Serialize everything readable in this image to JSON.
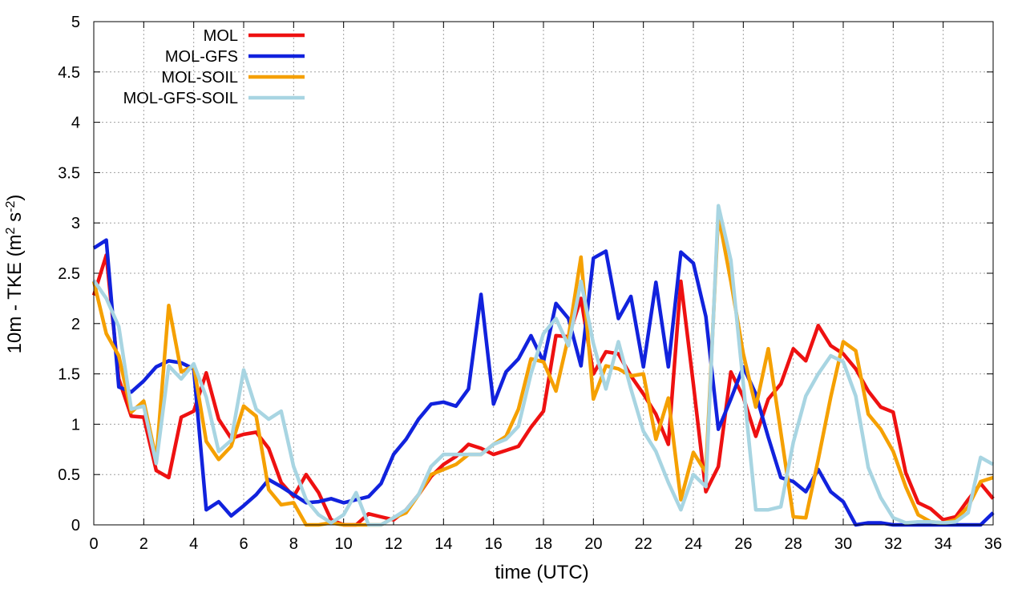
{
  "chart_data": {
    "type": "line",
    "title": "",
    "xlabel": "time (UTC)",
    "ylabel": {
      "base": "10m - TKE (m",
      "sup1": "2",
      "mid": " s",
      "sup2": "-2",
      "end": ")"
    },
    "xlim": [
      0,
      36
    ],
    "ylim": [
      0,
      5
    ],
    "xticks": [
      0,
      2,
      4,
      6,
      8,
      10,
      12,
      14,
      16,
      18,
      20,
      22,
      24,
      26,
      28,
      30,
      32,
      34,
      36
    ],
    "xtick_labels": [
      "0",
      "2",
      "4",
      "6",
      "8",
      "10",
      "12",
      "14",
      "16",
      "18",
      "20",
      "22",
      "24",
      "26",
      "28",
      "30",
      "32",
      "34",
      "36"
    ],
    "yticks": [
      0,
      0.5,
      1,
      1.5,
      2,
      2.5,
      3,
      3.5,
      4,
      4.5,
      5
    ],
    "ytick_labels": [
      "0",
      "0.5",
      "1",
      "1.5",
      "2",
      "2.5",
      "3",
      "3.5",
      "4",
      "4.5",
      "5"
    ],
    "grid": true,
    "legend_position": "top-left",
    "x": [
      0,
      0.5,
      1,
      1.5,
      2,
      2.5,
      3,
      3.5,
      4,
      4.5,
      5,
      5.5,
      6,
      6.5,
      7,
      7.5,
      8,
      8.5,
      9,
      9.5,
      10,
      10.5,
      11,
      11.5,
      12,
      12.5,
      13,
      13.5,
      14,
      14.5,
      15,
      15.5,
      16,
      16.5,
      17,
      17.5,
      18,
      18.5,
      19,
      19.5,
      20,
      20.5,
      21,
      21.5,
      22,
      22.5,
      23,
      23.5,
      24,
      24.5,
      25,
      25.5,
      26,
      26.5,
      27,
      27.5,
      28,
      28.5,
      29,
      29.5,
      30,
      30.5,
      31,
      31.5,
      32,
      32.5,
      33,
      33.5,
      34,
      34.5,
      35,
      35.5,
      36
    ],
    "series": [
      {
        "name": "MOL",
        "color": "#ee1111",
        "values": [
          2.28,
          2.68,
          1.45,
          1.08,
          1.07,
          0.54,
          0.47,
          1.07,
          1.13,
          1.51,
          1.05,
          0.86,
          0.9,
          0.92,
          0.76,
          0.42,
          0.28,
          0.5,
          0.32,
          0.05,
          0.0,
          0.0,
          0.11,
          0.08,
          0.05,
          0.15,
          0.3,
          0.48,
          0.6,
          0.68,
          0.8,
          0.76,
          0.7,
          0.74,
          0.78,
          0.97,
          1.13,
          1.88,
          1.87,
          2.25,
          1.5,
          1.72,
          1.7,
          1.48,
          1.3,
          1.1,
          0.8,
          2.42,
          1.4,
          0.33,
          0.58,
          1.52,
          1.27,
          0.88,
          1.25,
          1.4,
          1.75,
          1.63,
          1.98,
          1.78,
          1.7,
          1.55,
          1.33,
          1.17,
          1.12,
          0.52,
          0.22,
          0.16,
          0.05,
          0.08,
          0.25,
          0.41,
          0.26
        ]
      },
      {
        "name": "MOL-GFS",
        "color": "#1122dd",
        "values": [
          2.75,
          2.83,
          1.37,
          1.32,
          1.43,
          1.57,
          1.63,
          1.61,
          1.55,
          0.15,
          0.23,
          0.09,
          0.19,
          0.3,
          0.45,
          0.38,
          0.3,
          0.22,
          0.23,
          0.26,
          0.22,
          0.25,
          0.28,
          0.41,
          0.7,
          0.85,
          1.05,
          1.2,
          1.22,
          1.18,
          1.35,
          2.29,
          1.2,
          1.52,
          1.65,
          1.88,
          1.62,
          2.2,
          2.05,
          1.58,
          2.65,
          2.72,
          2.05,
          2.27,
          1.57,
          2.41,
          1.57,
          2.71,
          2.6,
          2.07,
          0.95,
          1.25,
          1.57,
          1.3,
          0.87,
          0.47,
          0.43,
          0.33,
          0.55,
          0.33,
          0.23,
          0.0,
          0.02,
          0.02,
          0.0,
          0.0,
          0.0,
          0.0,
          0.0,
          0.0,
          0.0,
          0.0,
          0.12
        ]
      },
      {
        "name": "MOL-SOIL",
        "color": "#f5a000",
        "values": [
          2.42,
          1.9,
          1.68,
          1.12,
          1.23,
          0.65,
          2.18,
          1.52,
          1.58,
          0.83,
          0.65,
          0.78,
          1.18,
          1.08,
          0.35,
          0.2,
          0.22,
          0.0,
          0.0,
          0.02,
          0.0,
          0.0,
          0.0,
          0.0,
          0.07,
          0.12,
          0.3,
          0.5,
          0.55,
          0.6,
          0.7,
          0.7,
          0.8,
          0.88,
          1.15,
          1.65,
          1.62,
          1.33,
          1.87,
          2.66,
          1.25,
          1.58,
          1.55,
          1.48,
          1.5,
          0.85,
          1.26,
          0.25,
          0.72,
          0.52,
          3.08,
          2.42,
          1.7,
          1.17,
          1.75,
          0.92,
          0.08,
          0.07,
          0.65,
          1.27,
          1.82,
          1.73,
          1.1,
          0.95,
          0.73,
          0.38,
          0.1,
          0.03,
          0.02,
          0.05,
          0.18,
          0.43,
          0.47
        ]
      },
      {
        "name": "MOL-GFS-SOIL",
        "color": "#a8d5e2",
        "values": [
          2.43,
          2.25,
          1.97,
          1.15,
          1.18,
          0.61,
          1.58,
          1.45,
          1.6,
          1.27,
          0.73,
          0.84,
          1.54,
          1.15,
          1.05,
          1.13,
          0.58,
          0.25,
          0.1,
          0.02,
          0.1,
          0.32,
          0.0,
          0.0,
          0.07,
          0.15,
          0.3,
          0.58,
          0.7,
          0.7,
          0.7,
          0.7,
          0.8,
          0.85,
          0.98,
          1.5,
          1.9,
          2.05,
          1.78,
          2.42,
          1.8,
          1.35,
          1.82,
          1.35,
          0.93,
          0.73,
          0.42,
          0.15,
          0.5,
          0.38,
          3.17,
          2.63,
          1.4,
          0.15,
          0.15,
          0.18,
          0.82,
          1.28,
          1.5,
          1.68,
          1.62,
          1.28,
          0.57,
          0.27,
          0.07,
          0.02,
          0.03,
          0.03,
          0.02,
          0.03,
          0.12,
          0.67,
          0.6
        ]
      }
    ]
  }
}
